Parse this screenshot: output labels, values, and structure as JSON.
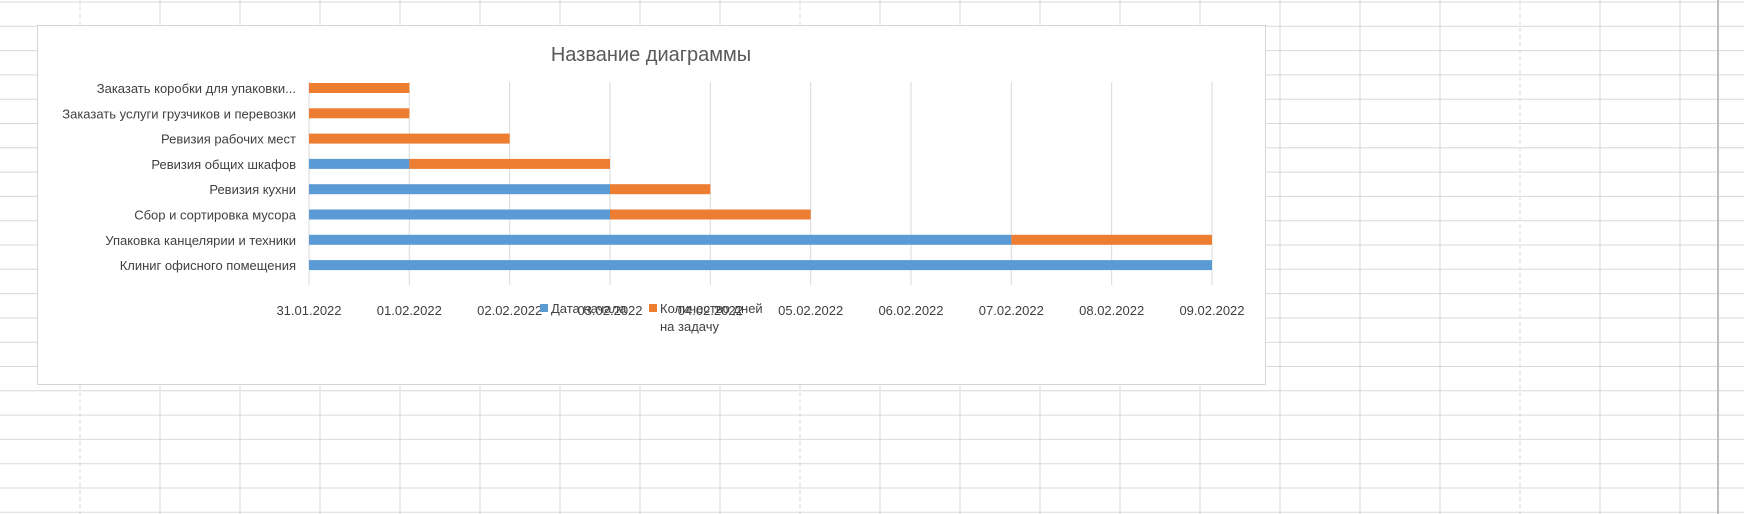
{
  "chart_data": {
    "type": "bar",
    "orientation": "horizontal",
    "stacked": true,
    "title": "Название диаграммы",
    "categories": [
      "Заказать коробки для упаковки...",
      "Заказать услуги грузчиков и перевозки",
      "Ревизия рабочих мест",
      "Ревизия общих шкафов",
      "Ревизия кухни",
      "Сбор и сортировка мусора",
      "Упаковка канцелярии и техники",
      "Клиниг офисного помещения"
    ],
    "x_ticks": [
      "31.01.2022",
      "01.02.2022",
      "02.02.2022",
      "03.02.2022",
      "04.02.2022",
      "05.02.2022",
      "06.02.2022",
      "07.02.2022",
      "08.02.2022",
      "09.02.2022"
    ],
    "xlim": [
      "31.01.2022",
      "09.02.2022"
    ],
    "series": [
      {
        "name": "Дата начала",
        "color": "#5b9bd5",
        "values": [
          "31.01.2022",
          "31.01.2022",
          "31.01.2022",
          "01.02.2022",
          "03.02.2022",
          "03.02.2022",
          "07.02.2022",
          "09.02.2022"
        ]
      },
      {
        "name": "Количество дней на задачу",
        "color": "#ed7d31",
        "values": [
          1,
          1,
          2,
          2,
          1,
          2,
          2,
          0
        ]
      }
    ],
    "legend_position": "bottom",
    "grid": true
  },
  "legend": {
    "item1": "Дата начала",
    "item2_line1": "Количество дней",
    "item2_line2": "на задачу"
  }
}
